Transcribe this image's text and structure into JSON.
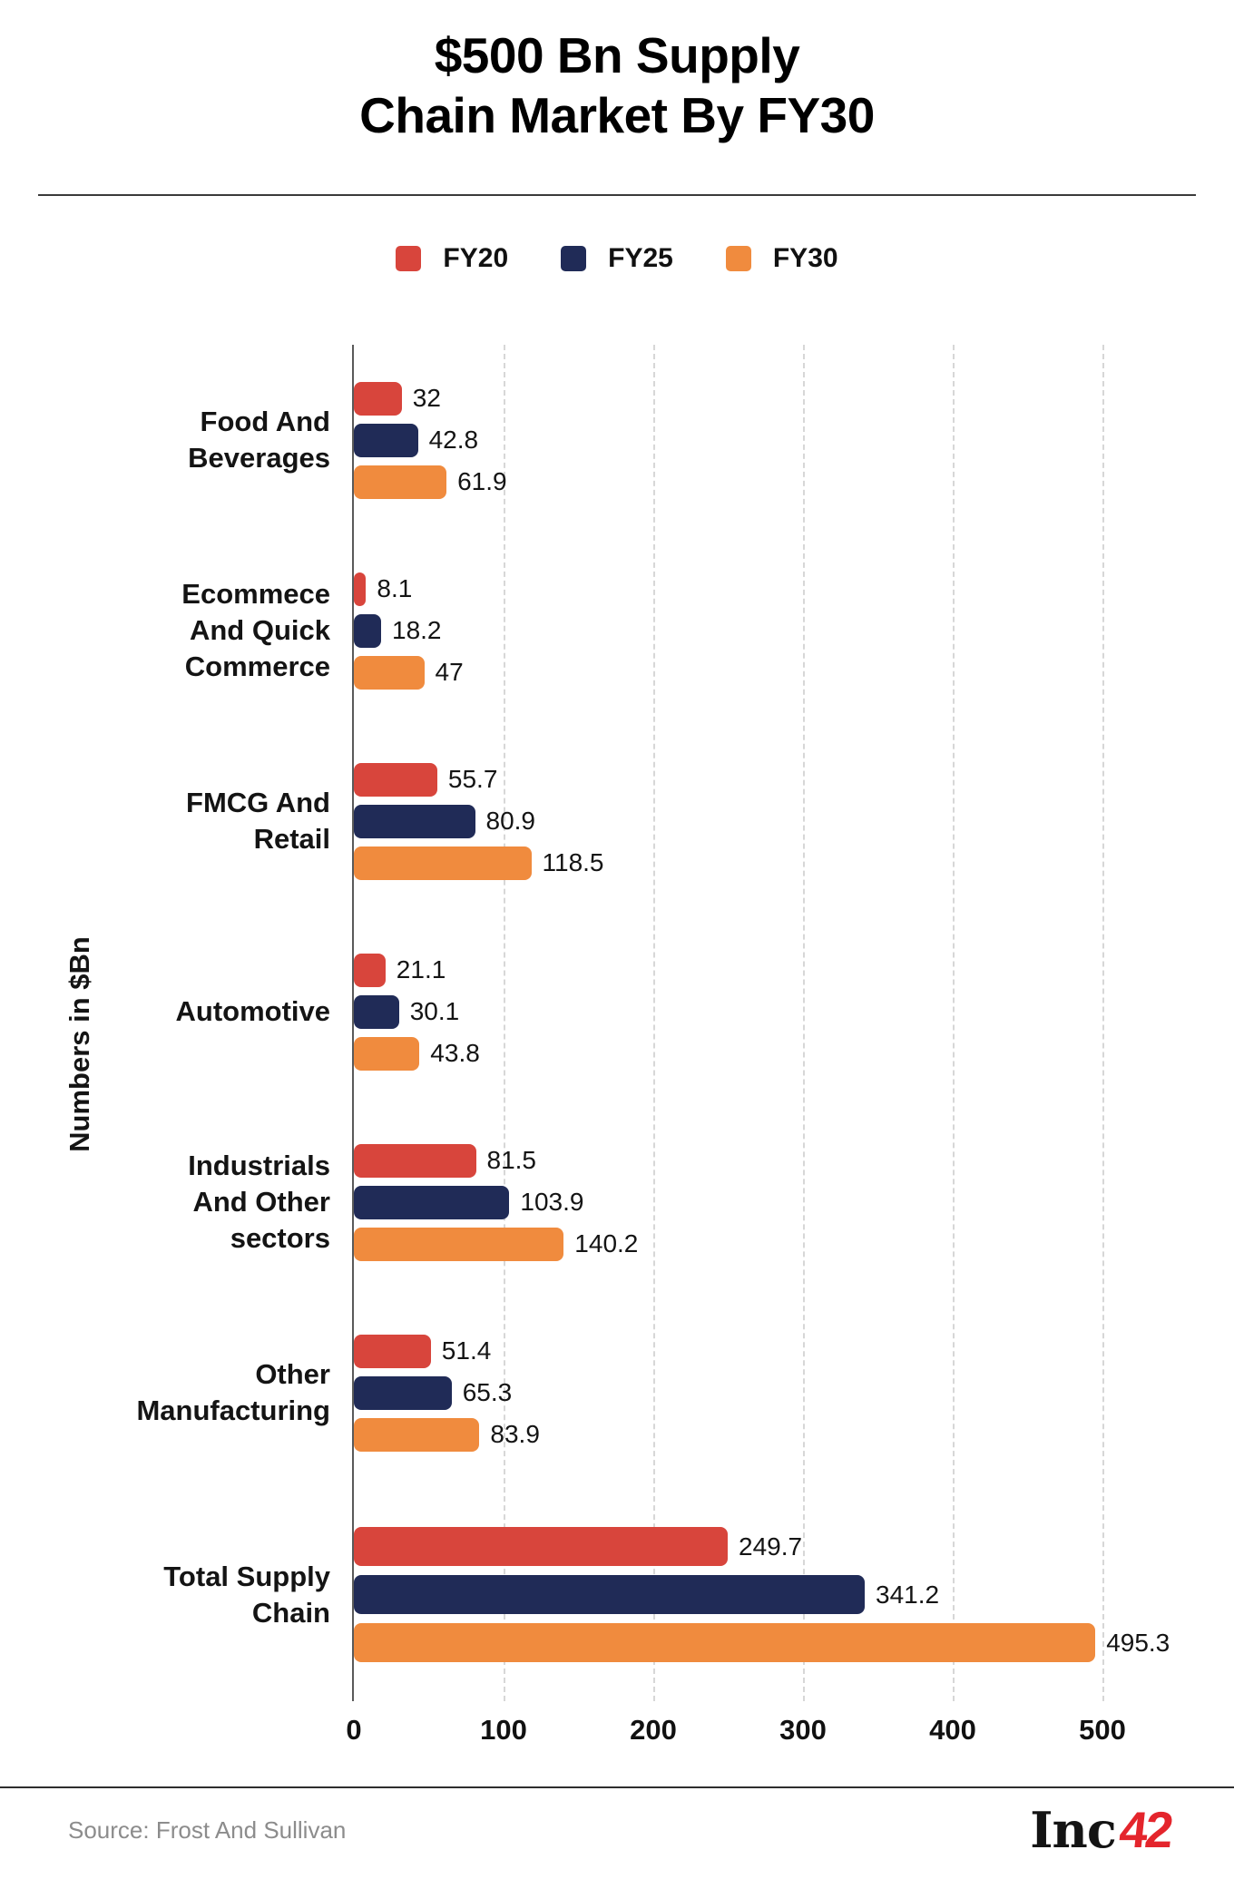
{
  "title": {
    "line1": "$500 Bn Supply",
    "line2": "Chain Market By FY30"
  },
  "legend": [
    {
      "label": "FY20",
      "color": "#D8453C"
    },
    {
      "label": "FY25",
      "color": "#202B57"
    },
    {
      "label": "FY30",
      "color": "#F08B3E"
    }
  ],
  "chart_data": {
    "type": "bar",
    "orientation": "horizontal",
    "title": "$500 Bn Supply Chain Market By FY30",
    "ylabel": "Numbers in $Bn",
    "xlim": [
      0,
      500
    ],
    "xticks": [
      "0",
      "100",
      "200",
      "300",
      "400",
      "500"
    ],
    "grid": "vertical-dashed",
    "legend_position": "top-center",
    "categories": [
      "Food And\nBeverages",
      "Ecommece\nAnd Quick\nCommerce",
      "FMCG And\nRetail",
      "Automotive",
      "Industrials\nAnd Other\nsectors",
      "Other\nManufacturing",
      "Total Supply\nChain"
    ],
    "series": [
      {
        "name": "FY20",
        "color": "#D8453C",
        "values": [
          32,
          8.1,
          55.7,
          21.1,
          81.5,
          51.4,
          249.7
        ]
      },
      {
        "name": "FY25",
        "color": "#202B57",
        "values": [
          42.8,
          18.2,
          80.9,
          30.1,
          103.9,
          65.3,
          341.2
        ]
      },
      {
        "name": "FY30",
        "color": "#F08B3E",
        "values": [
          61.9,
          47,
          118.5,
          43.8,
          140.2,
          83.9,
          495.3
        ]
      }
    ],
    "value_labels": [
      [
        "32",
        "8.1",
        "55.7",
        "21.1",
        "81.5",
        "51.4",
        "249.7"
      ],
      [
        "42.8",
        "18.2",
        "80.9",
        "30.1",
        "103.9",
        "65.3",
        "341.2"
      ],
      [
        "61.9",
        "47",
        "118.5",
        "43.8",
        "140.2",
        "83.9",
        "495.3"
      ]
    ]
  },
  "footer": {
    "source": "Source: Frost And Sullivan",
    "logo_black": "Inc",
    "logo_red": "42",
    "logo_red_color": "#E4252C"
  }
}
